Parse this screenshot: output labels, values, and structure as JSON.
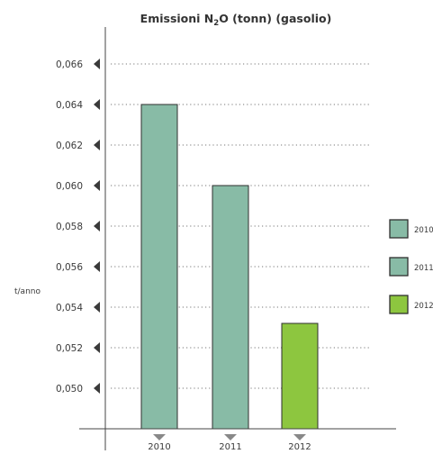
{
  "chart_data": {
    "type": "bar",
    "title": "Emissioni N2O (tonn) (gasolio)",
    "title_parts": {
      "before": "Emissioni N",
      "sub": "2",
      "after": "O (tonn) (gasolio)"
    },
    "ylabel": "t/anno",
    "xlabel": "",
    "categories": [
      "2010",
      "2011",
      "2012"
    ],
    "series": [
      {
        "name": "2010",
        "values": [
          0.064,
          null,
          null
        ],
        "color": "#88bba6"
      },
      {
        "name": "2011",
        "values": [
          null,
          0.06,
          null
        ],
        "color": "#88bba6"
      },
      {
        "name": "2012",
        "values": [
          null,
          null,
          0.0532
        ],
        "color": "#8dc63f"
      }
    ],
    "values": [
      0.064,
      0.06,
      0.0532
    ],
    "bar_colors": [
      "#88bba6",
      "#88bba6",
      "#8dc63f"
    ],
    "ylim": [
      0.048,
      0.066
    ],
    "yticks": [
      "0,066",
      "0,064",
      "0,062",
      "0,060",
      "0,058",
      "0,056",
      "0,054",
      "0,052",
      "0,050"
    ],
    "ytick_values": [
      0.066,
      0.064,
      0.062,
      0.06,
      0.058,
      0.056,
      0.054,
      0.052,
      0.05
    ],
    "grid": "dotted-horizontal",
    "legend": {
      "placement": "right",
      "entries": [
        "2010",
        "2011",
        "2012"
      ]
    }
  }
}
